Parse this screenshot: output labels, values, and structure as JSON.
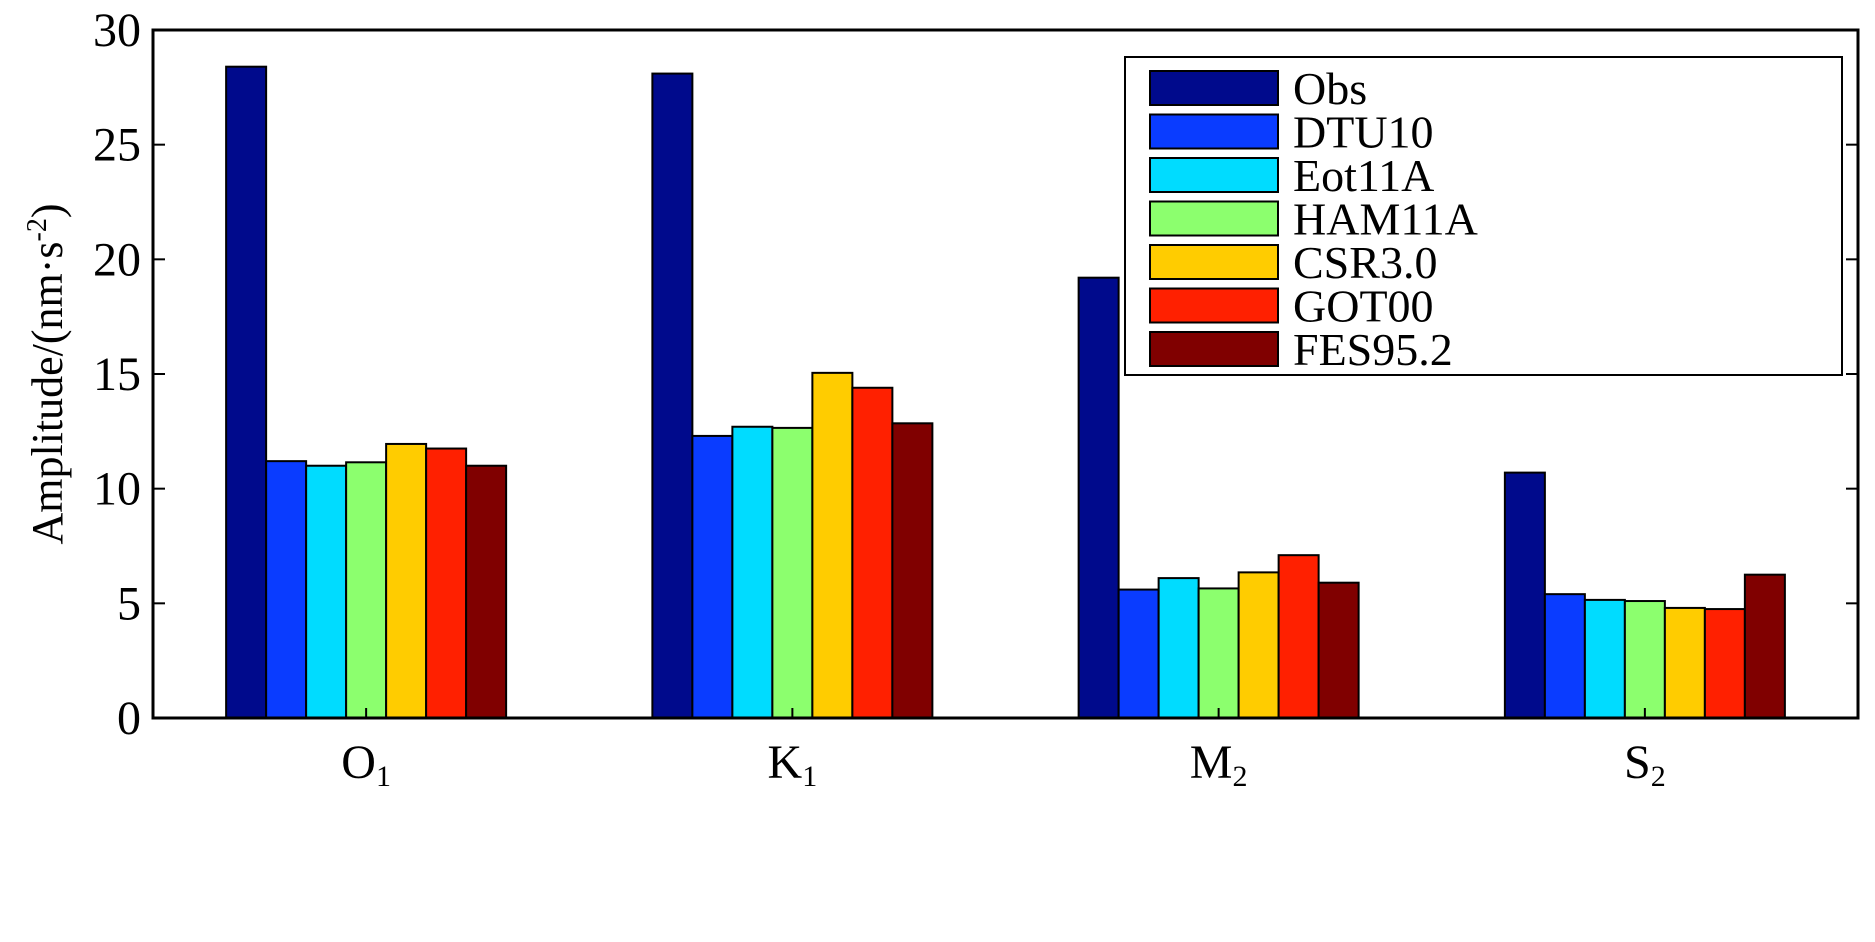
{
  "chart_data": {
    "type": "bar",
    "title": "",
    "xlabel": "",
    "ylabel": "Amplitude/(nm·s",
    "ylabel_sup": "-2",
    "ylabel_close": ")",
    "ylim": [
      0,
      30
    ],
    "yticks": [
      0,
      5,
      10,
      15,
      20,
      25,
      30
    ],
    "categories": [
      {
        "base": "O",
        "sub": "1"
      },
      {
        "base": "K",
        "sub": "1"
      },
      {
        "base": "M",
        "sub": "2"
      },
      {
        "base": "S",
        "sub": "2"
      }
    ],
    "series": [
      {
        "name": "Obs",
        "color": "#000a8c",
        "values": [
          28.4,
          28.1,
          19.2,
          10.7
        ]
      },
      {
        "name": "DTU10",
        "color": "#0a3cff",
        "values": [
          11.2,
          12.3,
          5.6,
          5.4
        ]
      },
      {
        "name": "Eot11A",
        "color": "#00dcff",
        "values": [
          11.0,
          12.7,
          6.1,
          5.15
        ]
      },
      {
        "name": "HAM11A",
        "color": "#8cff6e",
        "values": [
          11.15,
          12.65,
          5.65,
          5.1
        ]
      },
      {
        "name": "CSR3.0",
        "color": "#ffcc00",
        "values": [
          11.95,
          15.05,
          6.35,
          4.8
        ]
      },
      {
        "name": "GOT00",
        "color": "#ff2000",
        "values": [
          11.75,
          14.4,
          7.1,
          4.75
        ]
      },
      {
        "name": "FES95.2",
        "color": "#800000",
        "values": [
          11.0,
          12.85,
          5.9,
          6.25
        ]
      }
    ],
    "legend_position": "top-right",
    "grid": false
  }
}
